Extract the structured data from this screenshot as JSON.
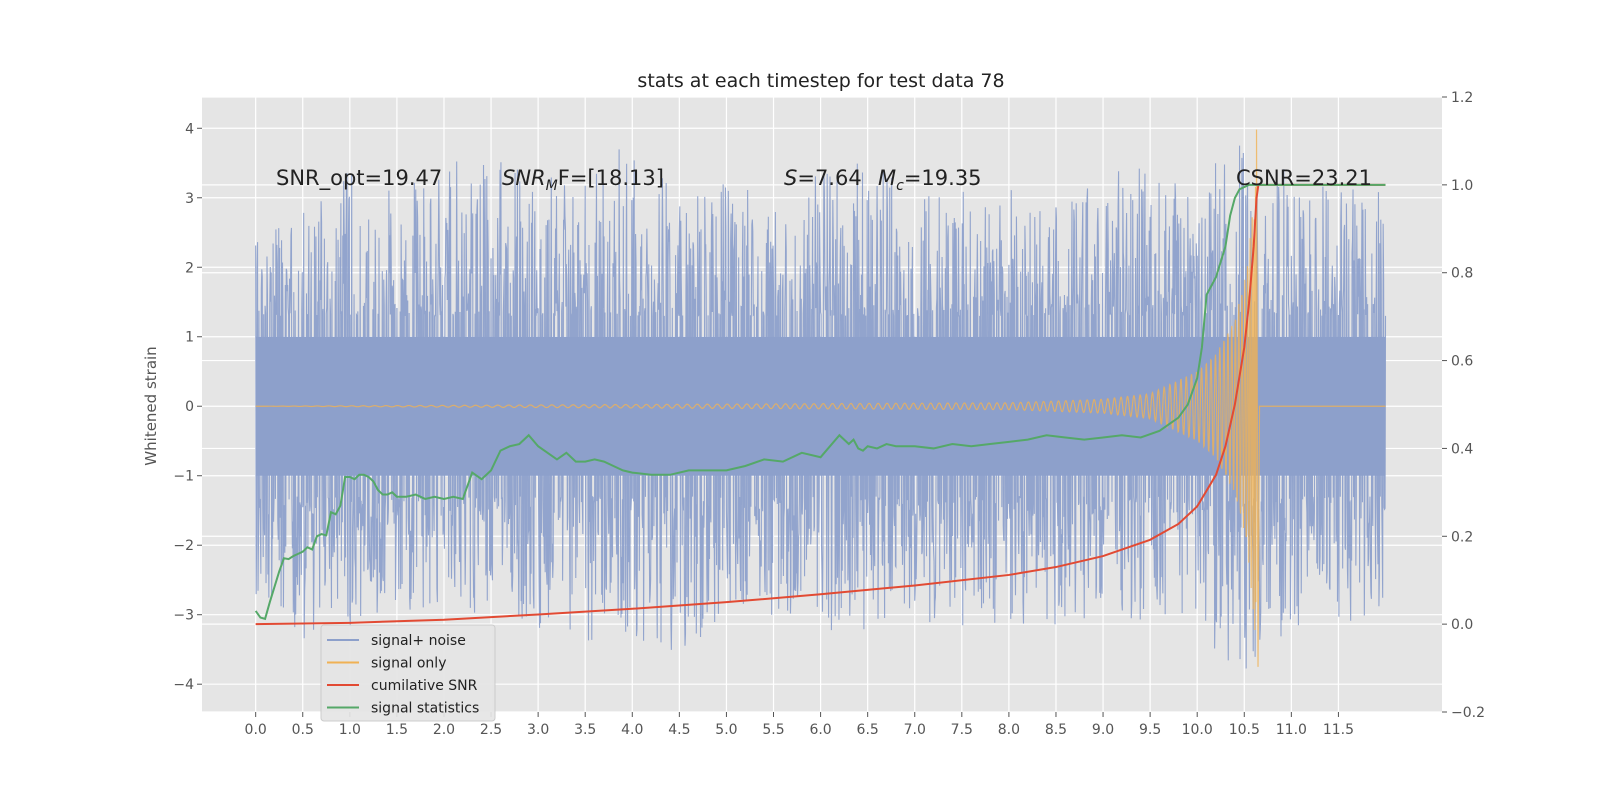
{
  "chart_data": {
    "type": "line",
    "title": "stats at each timestep for test data 78",
    "ylabel": "Whitened strain",
    "xlim": [
      -0.57,
      12.6
    ],
    "ylim": [
      -4.4,
      4.45
    ],
    "ylim_right": [
      -0.2,
      1.2
    ],
    "grid": true,
    "legend_placement": "lower-left",
    "x_ticks": [
      0.0,
      0.5,
      1.0,
      1.5,
      2.0,
      2.5,
      3.0,
      3.5,
      4.0,
      4.5,
      5.0,
      5.5,
      6.0,
      6.5,
      7.0,
      7.5,
      8.0,
      8.5,
      9.0,
      9.5,
      10.0,
      10.5,
      11.0,
      11.5
    ],
    "x_tick_labels": [
      "0.0",
      "0.5",
      "1.0",
      "1.5",
      "2.0",
      "2.5",
      "3.0",
      "3.5",
      "4.0",
      "4.5",
      "5.0",
      "5.5",
      "6.0",
      "6.5",
      "7.0",
      "7.5",
      "8.0",
      "8.5",
      "9.0",
      "9.5",
      "10.0",
      "10.5",
      "11.0",
      "11.5"
    ],
    "y_ticks": [
      -4,
      -3,
      -2,
      -1,
      0,
      1,
      2,
      3,
      4
    ],
    "y_tick_labels": [
      "−4",
      "−3",
      "−2",
      "−1",
      "0",
      "1",
      "2",
      "3",
      "4"
    ],
    "y_ticks_right": [
      -0.2,
      0.0,
      0.2,
      0.4,
      0.6,
      0.8,
      1.0,
      1.2
    ],
    "y_tick_labels_right": [
      "−0.2",
      "0.0",
      "0.2",
      "0.4",
      "0.6",
      "0.8",
      "1.0",
      "1.2"
    ],
    "annotations": {
      "snr_opt": "SNR_opt=19.47",
      "snr_mf_base": "SNR",
      "snr_mf_sub": "M",
      "snr_mf_rest": "F=[18.13]",
      "s_label": "S",
      "s_value": "=7.64",
      "mc_label": "M",
      "mc_sub": "c",
      "mc_value": "=19.35",
      "csnr": "CSNR=23.21"
    },
    "series": [
      {
        "name": "signal+ noise",
        "axis": "left",
        "color": "#8da0cb",
        "x_range": [
          0.0,
          12.0
        ],
        "envelope": {
          "x": [
            0.0,
            0.5,
            1.0,
            1.5,
            2.0,
            2.5,
            3.0,
            3.5,
            4.0,
            4.5,
            5.0,
            5.5,
            6.0,
            6.5,
            7.0,
            7.5,
            8.0,
            8.5,
            9.0,
            9.5,
            10.0,
            10.5,
            11.0,
            11.5,
            12.0
          ],
          "max": [
            2.5,
            2.8,
            3.4,
            3.1,
            3.5,
            3.6,
            3.4,
            3.2,
            3.9,
            3.0,
            3.3,
            3.1,
            3.4,
            3.6,
            3.0,
            3.1,
            3.3,
            3.2,
            3.3,
            3.6,
            3.2,
            4.1,
            3.3,
            3.2,
            3.1
          ],
          "min": [
            -2.7,
            -3.4,
            -3.2,
            -3.0,
            -3.1,
            -3.0,
            -3.3,
            -3.4,
            -3.5,
            -3.6,
            -3.1,
            -3.0,
            -3.2,
            -3.3,
            -3.1,
            -3.2,
            -3.1,
            -3.2,
            -3.0,
            -3.1,
            -3.3,
            -3.9,
            -3.2,
            -3.1,
            -3.3
          ]
        },
        "spike": {
          "x": 6.0,
          "min": -0.9,
          "max": 0.9
        }
      },
      {
        "name": "signal only",
        "axis": "left",
        "color": "#f0b154",
        "chirp_start": 0.0,
        "merger_time": 10.63,
        "peak_max": 3.98,
        "peak_min": -3.75,
        "envelope": {
          "x": [
            0.0,
            8.0,
            9.0,
            9.5,
            10.0,
            10.2,
            10.4,
            10.5,
            10.55,
            10.6,
            10.63
          ],
          "amp": [
            0.0,
            0.05,
            0.1,
            0.18,
            0.5,
            0.75,
            1.25,
            1.8,
            2.3,
            3.0,
            3.75
          ]
        }
      },
      {
        "name": "cumilative SNR",
        "axis": "right",
        "color": "#e24a33",
        "x": [
          0.0,
          1.0,
          2.0,
          3.0,
          4.0,
          5.0,
          6.0,
          7.0,
          8.0,
          8.5,
          9.0,
          9.5,
          9.8,
          10.0,
          10.2,
          10.3,
          10.4,
          10.5,
          10.55,
          10.6,
          10.63,
          10.65,
          12.0
        ],
        "values": [
          0.0,
          0.003,
          0.01,
          0.022,
          0.035,
          0.05,
          0.068,
          0.088,
          0.112,
          0.13,
          0.155,
          0.192,
          0.228,
          0.268,
          0.34,
          0.405,
          0.5,
          0.63,
          0.73,
          0.86,
          0.97,
          1.0,
          1.0
        ]
      },
      {
        "name": "signal statistics",
        "axis": "right",
        "color": "#55a868",
        "x": [
          0.0,
          0.05,
          0.1,
          0.15,
          0.2,
          0.25,
          0.3,
          0.35,
          0.4,
          0.45,
          0.5,
          0.55,
          0.6,
          0.65,
          0.7,
          0.75,
          0.8,
          0.85,
          0.9,
          0.95,
          1.0,
          1.05,
          1.1,
          1.15,
          1.2,
          1.25,
          1.3,
          1.35,
          1.4,
          1.45,
          1.5,
          1.6,
          1.7,
          1.8,
          1.9,
          2.0,
          2.1,
          2.2,
          2.3,
          2.4,
          2.5,
          2.6,
          2.7,
          2.8,
          2.9,
          3.0,
          3.1,
          3.2,
          3.3,
          3.4,
          3.5,
          3.6,
          3.7,
          3.8,
          3.9,
          4.0,
          4.2,
          4.4,
          4.6,
          4.8,
          5.0,
          5.2,
          5.4,
          5.6,
          5.8,
          6.0,
          6.2,
          6.3,
          6.35,
          6.4,
          6.45,
          6.5,
          6.6,
          6.7,
          6.8,
          7.0,
          7.2,
          7.4,
          7.6,
          7.8,
          8.0,
          8.2,
          8.4,
          8.6,
          8.8,
          9.0,
          9.2,
          9.4,
          9.6,
          9.8,
          9.9,
          10.0,
          10.05,
          10.1,
          10.15,
          10.2,
          10.3,
          10.35,
          10.4,
          10.45,
          10.5,
          10.55,
          10.6,
          10.65,
          11.0,
          12.0
        ],
        "values": [
          0.03,
          0.015,
          0.012,
          0.05,
          0.085,
          0.12,
          0.15,
          0.148,
          0.155,
          0.16,
          0.165,
          0.175,
          0.17,
          0.2,
          0.205,
          0.202,
          0.255,
          0.25,
          0.27,
          0.335,
          0.335,
          0.33,
          0.34,
          0.34,
          0.335,
          0.325,
          0.305,
          0.295,
          0.295,
          0.3,
          0.29,
          0.29,
          0.295,
          0.285,
          0.29,
          0.285,
          0.29,
          0.285,
          0.345,
          0.33,
          0.35,
          0.395,
          0.405,
          0.41,
          0.43,
          0.405,
          0.39,
          0.375,
          0.39,
          0.37,
          0.37,
          0.375,
          0.37,
          0.36,
          0.35,
          0.345,
          0.34,
          0.34,
          0.35,
          0.35,
          0.35,
          0.36,
          0.375,
          0.37,
          0.39,
          0.38,
          0.43,
          0.41,
          0.42,
          0.4,
          0.395,
          0.405,
          0.4,
          0.41,
          0.405,
          0.405,
          0.4,
          0.41,
          0.405,
          0.41,
          0.415,
          0.42,
          0.43,
          0.425,
          0.42,
          0.425,
          0.43,
          0.425,
          0.44,
          0.47,
          0.5,
          0.56,
          0.63,
          0.75,
          0.77,
          0.79,
          0.86,
          0.93,
          0.97,
          0.99,
          0.995,
          1.0,
          1.0,
          1.0,
          1.0,
          1.0
        ]
      }
    ]
  }
}
